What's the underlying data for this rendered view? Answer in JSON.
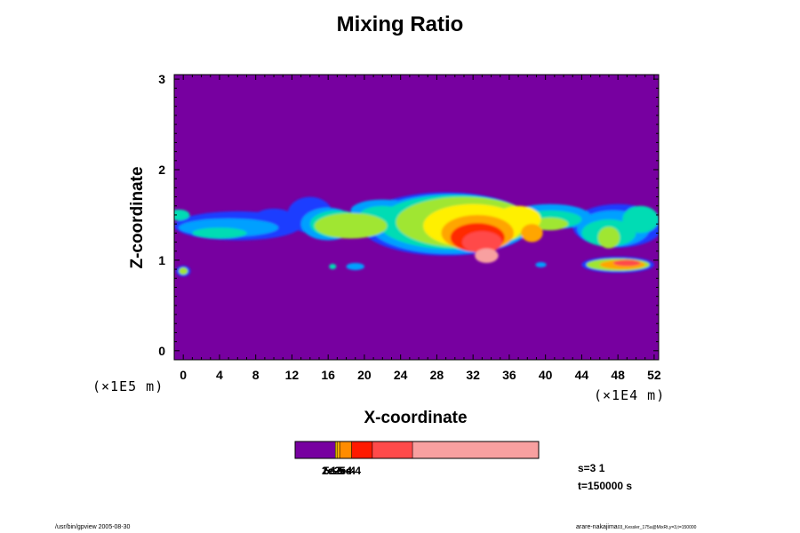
{
  "chart_data": {
    "type": "heatmap",
    "title": "Mixing Ratio",
    "xlabel": "X-coordinate",
    "ylabel": "Z-coordinate",
    "x_scale_label": "(×1E4 m)",
    "y_scale_label": "(×1E5 m)",
    "xlim": [
      -1,
      52.5
    ],
    "ylim": [
      -0.1,
      3.05
    ],
    "x_ticks": [
      0,
      4,
      8,
      12,
      16,
      20,
      24,
      28,
      32,
      36,
      40,
      44,
      48,
      52
    ],
    "y_ticks": [
      0,
      1,
      2,
      3
    ],
    "background_color": "#7700a0",
    "color_levels": [
      "#7700a0",
      "#1e3cff",
      "#00a0ff",
      "#00dcb4",
      "#a0e632",
      "#fff000",
      "#ffa500",
      "#ff2a00",
      "#ff4a4a",
      "#f8a0a0"
    ],
    "colorbar": {
      "swatches": [
        {
          "color": "#7700a0",
          "fraction": 0.165
        },
        {
          "color": "#ffd700",
          "fraction": 0.007
        },
        {
          "color": "#ffb000",
          "fraction": 0.011
        },
        {
          "color": "#ff8c00",
          "fraction": 0.049
        },
        {
          "color": "#ff1a00",
          "fraction": 0.085
        },
        {
          "color": "#ff4a4a",
          "fraction": 0.165
        },
        {
          "color": "#f8a0a0",
          "fraction": 0.518
        }
      ],
      "labels": [
        "1e-5",
        "2e-5",
        "5e-5",
        "1e-4",
        "2e-4",
        "5e-4"
      ]
    },
    "plumes": [
      {
        "x": 6,
        "z": 1.38,
        "rx": 7,
        "rz": 0.16,
        "level": 1
      },
      {
        "x": 5,
        "z": 1.36,
        "rx": 5.5,
        "rz": 0.1,
        "level": 2
      },
      {
        "x": 4,
        "z": 1.3,
        "rx": 3,
        "rz": 0.06,
        "level": 3
      },
      {
        "x": -0.5,
        "z": 1.5,
        "rx": 1.2,
        "rz": 0.06,
        "level": 3
      },
      {
        "x": 10,
        "z": 1.43,
        "rx": 2.5,
        "rz": 0.14,
        "level": 1
      },
      {
        "x": 14,
        "z": 1.5,
        "rx": 2.5,
        "rz": 0.2,
        "level": 1
      },
      {
        "x": 16,
        "z": 1.4,
        "rx": 3,
        "rz": 0.18,
        "level": 2
      },
      {
        "x": 17,
        "z": 1.4,
        "rx": 3,
        "rz": 0.15,
        "level": 3
      },
      {
        "x": 18.5,
        "z": 1.38,
        "rx": 4,
        "rz": 0.14,
        "level": 4
      },
      {
        "x": 22,
        "z": 1.55,
        "rx": 3.5,
        "rz": 0.12,
        "level": 2
      },
      {
        "x": 22,
        "z": 1.5,
        "rx": 2.5,
        "rz": 0.1,
        "level": 3
      },
      {
        "x": 29,
        "z": 1.4,
        "rx": 9.5,
        "rz": 0.35,
        "level": 1
      },
      {
        "x": 29.5,
        "z": 1.4,
        "rx": 9,
        "rz": 0.33,
        "level": 2
      },
      {
        "x": 30,
        "z": 1.42,
        "rx": 8.5,
        "rz": 0.3,
        "level": 3
      },
      {
        "x": 31,
        "z": 1.42,
        "rx": 7.5,
        "rz": 0.28,
        "level": 4
      },
      {
        "x": 32,
        "z": 1.38,
        "rx": 5.5,
        "rz": 0.24,
        "level": 5
      },
      {
        "x": 32.5,
        "z": 1.3,
        "rx": 4,
        "rz": 0.2,
        "level": 6
      },
      {
        "x": 32.5,
        "z": 1.25,
        "rx": 3,
        "rz": 0.16,
        "level": 7
      },
      {
        "x": 33,
        "z": 1.2,
        "rx": 2.2,
        "rz": 0.12,
        "level": 8
      },
      {
        "x": 33.5,
        "z": 1.05,
        "rx": 1.3,
        "rz": 0.08,
        "level": 9
      },
      {
        "x": 37,
        "z": 1.45,
        "rx": 2.5,
        "rz": 0.15,
        "level": 5
      },
      {
        "x": 38.5,
        "z": 1.3,
        "rx": 1.2,
        "rz": 0.1,
        "level": 6
      },
      {
        "x": 40.5,
        "z": 1.48,
        "rx": 4.5,
        "rz": 0.14,
        "level": 2
      },
      {
        "x": 40.5,
        "z": 1.45,
        "rx": 3.5,
        "rz": 0.1,
        "level": 3
      },
      {
        "x": 40.5,
        "z": 1.4,
        "rx": 2,
        "rz": 0.07,
        "level": 4
      },
      {
        "x": 48,
        "z": 1.38,
        "rx": 5,
        "rz": 0.24,
        "level": 1
      },
      {
        "x": 47.5,
        "z": 1.35,
        "rx": 4,
        "rz": 0.2,
        "level": 2
      },
      {
        "x": 47,
        "z": 1.3,
        "rx": 3,
        "rz": 0.15,
        "level": 3
      },
      {
        "x": 50.5,
        "z": 1.45,
        "rx": 2,
        "rz": 0.15,
        "level": 3
      },
      {
        "x": 47,
        "z": 1.25,
        "rx": 1.2,
        "rz": 0.12,
        "level": 4
      },
      {
        "x": 48,
        "z": 0.95,
        "rx": 4,
        "rz": 0.09,
        "level": 1
      },
      {
        "x": 48,
        "z": 0.95,
        "rx": 3.5,
        "rz": 0.07,
        "level": 4
      },
      {
        "x": 48.5,
        "z": 0.95,
        "rx": 2.5,
        "rz": 0.05,
        "level": 6
      },
      {
        "x": 49,
        "z": 0.97,
        "rx": 1.5,
        "rz": 0.035,
        "level": 8
      },
      {
        "x": 0,
        "z": 0.88,
        "rx": 0.8,
        "rz": 0.06,
        "level": 1
      },
      {
        "x": 0,
        "z": 0.88,
        "rx": 0.5,
        "rz": 0.04,
        "level": 4
      },
      {
        "x": 19,
        "z": 0.93,
        "rx": 1,
        "rz": 0.04,
        "level": 2
      },
      {
        "x": 16.5,
        "z": 0.93,
        "rx": 0.4,
        "rz": 0.03,
        "level": 3
      },
      {
        "x": 39.5,
        "z": 0.95,
        "rx": 0.6,
        "rz": 0.03,
        "level": 2
      }
    ]
  },
  "stamp": {
    "s": "s=3 1",
    "t": "t=150000 s"
  },
  "footer": {
    "left": "/usr/bin/gpview 2005-08-30",
    "right_user": "arare-nakajima",
    "right_path": "03_Kessler_175a@MixRt,y=3,t=150000"
  }
}
